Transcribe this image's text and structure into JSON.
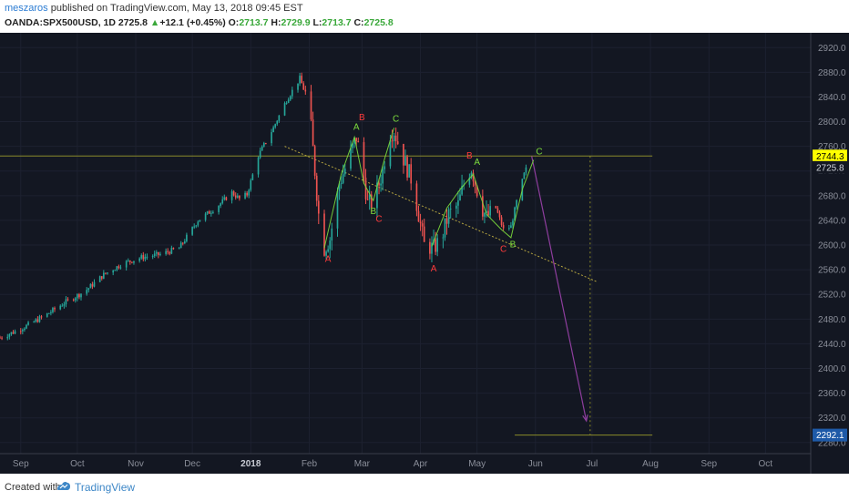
{
  "header": {
    "author": "meszaros",
    "published_text": "published on TradingView.com, May 13, 2018 09:45 EST",
    "symbol": "OANDA:SPX500USD, 1D",
    "last": "2725.8",
    "change_arrow": "▲",
    "change": "+12.1 (+0.45%)",
    "o_label": "O:",
    "o_value": "2713.7",
    "h_label": "H:",
    "h_value": "2729.9",
    "l_label": "L:",
    "l_value": "2713.7",
    "c_label": "C:",
    "c_value": "2725.8"
  },
  "footer": {
    "created_with": "Created with",
    "brand": "TradingView"
  },
  "colors": {
    "background": "#131722",
    "up": "#26a69a",
    "down": "#ef5350",
    "wave_green": "#7cdd3c",
    "wave_red": "#ff3b3b",
    "hline": "#8a8a2a",
    "trendline": "#b7a640",
    "projection": "#8e3e9e",
    "price_tag_yellow": "#ffff00",
    "price_tag_blue": "#1e5aa8"
  },
  "chart_data": {
    "type": "candlestick",
    "y_ticks": [
      "2920.0",
      "2880.0",
      "2840.0",
      "2800.0",
      "2760.0",
      "2720.0",
      "2680.0",
      "2640.0",
      "2600.0",
      "2560.0",
      "2520.0",
      "2480.0",
      "2440.0",
      "2400.0",
      "2360.0",
      "2320.0",
      "2280.0"
    ],
    "ylim": [
      2262,
      2944
    ],
    "x_ticks": [
      {
        "label": "Sep",
        "day": 0
      },
      {
        "label": "Oct",
        "day": 30
      },
      {
        "label": "Nov",
        "day": 61
      },
      {
        "label": "Dec",
        "day": 91
      },
      {
        "label": "2018",
        "day": 122
      },
      {
        "label": "Feb",
        "day": 153
      },
      {
        "label": "Mar",
        "day": 181
      },
      {
        "label": "Apr",
        "day": 212
      },
      {
        "label": "May",
        "day": 242
      },
      {
        "label": "Jun",
        "day": 273
      },
      {
        "label": "Jul",
        "day": 303
      },
      {
        "label": "Aug",
        "day": 334
      },
      {
        "label": "Sep",
        "day": 365
      },
      {
        "label": "Oct",
        "day": 395
      }
    ],
    "x_start_day": -11,
    "x_end_day": 419,
    "price_labels": [
      {
        "value": 2744.3,
        "text": "2744.3",
        "style": "yellow"
      },
      {
        "value": 2725.8,
        "text": "2725.8",
        "style": "dark"
      },
      {
        "value": 2292.1,
        "text": "2292.1",
        "style": "blue"
      }
    ],
    "anchors": [
      {
        "day": -11,
        "price": 2450
      },
      {
        "day": -3,
        "price": 2460
      },
      {
        "day": 5,
        "price": 2472
      },
      {
        "day": 14,
        "price": 2488
      },
      {
        "day": 24,
        "price": 2508
      },
      {
        "day": 34,
        "price": 2525
      },
      {
        "day": 44,
        "price": 2552
      },
      {
        "day": 54,
        "price": 2570
      },
      {
        "day": 64,
        "price": 2580
      },
      {
        "day": 74,
        "price": 2585
      },
      {
        "day": 84,
        "price": 2595
      },
      {
        "day": 94,
        "price": 2640
      },
      {
        "day": 104,
        "price": 2662
      },
      {
        "day": 112,
        "price": 2685
      },
      {
        "day": 116,
        "price": 2675
      },
      {
        "day": 120,
        "price": 2682
      },
      {
        "day": 126,
        "price": 2745
      },
      {
        "day": 134,
        "price": 2790
      },
      {
        "day": 141,
        "price": 2835
      },
      {
        "day": 146,
        "price": 2860
      },
      {
        "day": 148,
        "price": 2870
      },
      {
        "day": 151,
        "price": 2845
      },
      {
        "day": 154,
        "price": 2790
      },
      {
        "day": 158,
        "price": 2650
      },
      {
        "day": 160,
        "price": 2590
      },
      {
        "day": 164,
        "price": 2610
      },
      {
        "day": 169,
        "price": 2700
      },
      {
        "day": 174,
        "price": 2740
      },
      {
        "day": 178,
        "price": 2775
      },
      {
        "day": 181,
        "price": 2730
      },
      {
        "day": 184,
        "price": 2668
      },
      {
        "day": 187,
        "price": 2668
      },
      {
        "day": 192,
        "price": 2720
      },
      {
        "day": 195,
        "price": 2780
      },
      {
        "day": 198,
        "price": 2785
      },
      {
        "day": 203,
        "price": 2740
      },
      {
        "day": 208,
        "price": 2700
      },
      {
        "day": 214,
        "price": 2600
      },
      {
        "day": 219,
        "price": 2595
      },
      {
        "day": 223,
        "price": 2610
      },
      {
        "day": 227,
        "price": 2650
      },
      {
        "day": 232,
        "price": 2665
      },
      {
        "day": 236,
        "price": 2710
      },
      {
        "day": 239,
        "price": 2725
      },
      {
        "day": 244,
        "price": 2665
      },
      {
        "day": 247,
        "price": 2645
      },
      {
        "day": 252,
        "price": 2660
      },
      {
        "day": 256,
        "price": 2625
      },
      {
        "day": 260,
        "price": 2630
      },
      {
        "day": 263,
        "price": 2670
      },
      {
        "day": 268,
        "price": 2725.8
      }
    ],
    "horizontal_lines": [
      {
        "value": 2744.3,
        "from_day": -11,
        "to_day": 335
      },
      {
        "value": 2292.1,
        "from_day": 262,
        "to_day": 335
      }
    ],
    "trendline": {
      "from": {
        "day": 140,
        "price": 2760
      },
      "to": {
        "day": 306,
        "price": 2540
      },
      "solid_until_day": 260
    },
    "projection": {
      "from": {
        "day": 271,
        "price": 2744
      },
      "to": {
        "day": 300,
        "price": 2315
      }
    },
    "vertical_guide": {
      "day": 302,
      "from_price": 2744.3,
      "to_price": 2292.1
    },
    "wave_labels": [
      {
        "text": "A",
        "day": 163,
        "price": 2573,
        "color": "red"
      },
      {
        "text": "A",
        "day": 178,
        "price": 2787,
        "color": "green"
      },
      {
        "text": "B",
        "day": 181,
        "price": 2802,
        "color": "red"
      },
      {
        "text": "B",
        "day": 187,
        "price": 2650,
        "color": "green"
      },
      {
        "text": "C",
        "day": 190,
        "price": 2638,
        "color": "red"
      },
      {
        "text": "C",
        "day": 199,
        "price": 2800,
        "color": "green"
      },
      {
        "text": "A",
        "day": 219,
        "price": 2557,
        "color": "red"
      },
      {
        "text": "B",
        "day": 238,
        "price": 2740,
        "color": "red"
      },
      {
        "text": "A",
        "day": 242,
        "price": 2730,
        "color": "green"
      },
      {
        "text": "C",
        "day": 256,
        "price": 2589,
        "color": "red"
      },
      {
        "text": "B",
        "day": 261,
        "price": 2596,
        "color": "green"
      },
      {
        "text": "C",
        "day": 275,
        "price": 2747,
        "color": "green"
      }
    ],
    "wave_paths": [
      {
        "color": "green",
        "points": [
          [
            161,
            2595
          ],
          [
            170,
            2715
          ],
          [
            177,
            2775
          ],
          [
            182,
            2700
          ],
          [
            187,
            2672
          ],
          [
            193,
            2740
          ],
          [
            198,
            2790
          ]
        ]
      },
      {
        "color": "green",
        "points": [
          [
            218,
            2598
          ],
          [
            226,
            2660
          ],
          [
            233,
            2690
          ],
          [
            240,
            2715
          ],
          [
            247,
            2650
          ],
          [
            255,
            2625
          ],
          [
            260,
            2612
          ],
          [
            266,
            2690
          ],
          [
            272,
            2738
          ]
        ]
      }
    ]
  }
}
